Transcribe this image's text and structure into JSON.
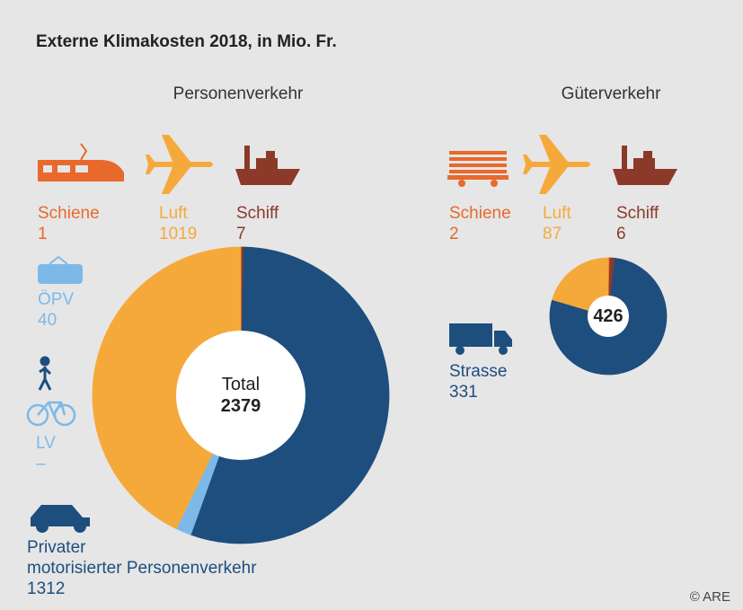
{
  "title": "Externe Klimakosten 2018, in Mio. Fr.",
  "credit": "© ARE",
  "chart_data": [
    {
      "type": "donut",
      "title": "Personenverkehr",
      "categories": [
        "Schiene",
        "Schiff",
        "Privater\nmotorisierter Personenverkehr",
        "ÖPV",
        "LV",
        "Luft"
      ],
      "values": [
        1,
        7,
        1312,
        40,
        null,
        1019
      ],
      "value_labels": [
        "1",
        "7",
        "1312",
        "40",
        "–",
        "1019"
      ],
      "colors": [
        "#e8692b",
        "#8b3a2a",
        "#1d4e7e",
        "#7db9e8",
        "#7db9e8",
        "#f6a93b"
      ],
      "center_label": "Total",
      "total": 2379
    },
    {
      "type": "donut",
      "title": "Güterverkehr",
      "categories": [
        "Schiene",
        "Schiff",
        "Strasse",
        "Luft"
      ],
      "values": [
        2,
        6,
        331,
        87
      ],
      "value_labels": [
        "2",
        "6",
        "331",
        "87"
      ],
      "colors": [
        "#e8692b",
        "#8b3a2a",
        "#1d4e7e",
        "#f6a93b"
      ],
      "total": 426
    }
  ]
}
